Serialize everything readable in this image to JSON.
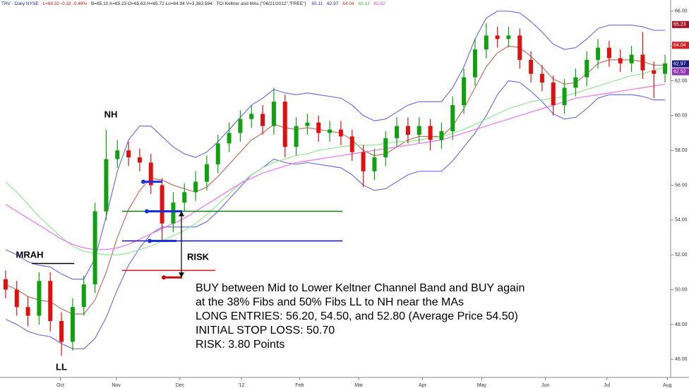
{
  "chart_data": {
    "type": "candlestick",
    "header": {
      "symbol": "TRV - Daily  NYSE",
      "last": "L=65.32 -0.32 -0.49%",
      "quote": "B=65.10  A=65.23  O=65.63  H=65.72  Lo=64.94  V=3,383,594",
      "study": "TCI Keltner and MAs (\"06/21/2012\",\"FREE\")",
      "study_values": [
        {
          "text": "65.11",
          "color": "#3030ff"
        },
        {
          "text": "62.97",
          "color": "#1a1a80"
        },
        {
          "text": "64.04",
          "color": "#c02020"
        },
        {
          "text": "63.13",
          "color": "#40c040"
        },
        {
          "text": "62.52",
          "color": "#e040e0"
        }
      ]
    },
    "open": [
      50.6,
      50.0,
      49.0,
      48.5,
      50.5,
      48.2,
      47.0,
      49.0,
      50.3,
      54.5,
      57.5,
      58.0,
      57.6,
      57.3,
      56.0,
      53.8,
      55.0,
      55.6,
      56.2,
      57.2,
      58.4,
      59.0,
      59.8,
      60.1,
      59.4,
      60.8,
      58.2,
      59.4,
      59.6,
      59.0,
      59.2,
      58.8,
      57.9,
      56.8,
      57.6,
      58.7,
      59.4,
      58.9,
      59.4,
      58.6,
      59.1,
      60.6,
      62.2,
      63.8,
      64.6,
      64.4,
      64.6,
      63.2,
      62.4,
      61.9,
      60.6,
      61.6,
      62.2,
      63.2,
      63.9,
      63.3,
      63.0,
      63.5,
      62.6,
      62.4
    ],
    "high": [
      51.1,
      50.5,
      49.6,
      51.0,
      51.0,
      48.7,
      49.5,
      50.8,
      55.0,
      59.2,
      58.6,
      58.5,
      58.1,
      57.8,
      56.4,
      55.6,
      56.1,
      56.8,
      57.7,
      58.9,
      59.6,
      60.3,
      60.6,
      60.6,
      61.6,
      61.2,
      59.9,
      60.1,
      60.0,
      59.7,
      59.7,
      59.2,
      58.3,
      58.1,
      59.1,
      59.9,
      59.9,
      59.9,
      59.8,
      59.6,
      61.1,
      62.7,
      64.4,
      65.3,
      65.1,
      65.1,
      65.0,
      63.7,
      62.9,
      62.3,
      62.1,
      62.7,
      63.7,
      64.4,
      64.3,
      63.8,
      64.0,
      64.8,
      63.1,
      63.5
    ],
    "low": [
      49.5,
      48.5,
      47.9,
      48.0,
      47.6,
      46.2,
      46.5,
      48.5,
      49.8,
      54.0,
      57.0,
      57.1,
      56.8,
      55.5,
      52.8,
      53.3,
      54.5,
      55.1,
      55.7,
      56.7,
      57.9,
      58.5,
      59.3,
      58.9,
      58.9,
      57.6,
      57.7,
      58.9,
      58.5,
      58.5,
      58.3,
      57.4,
      55.9,
      56.3,
      57.1,
      58.2,
      58.4,
      58.4,
      58.0,
      58.1,
      58.6,
      60.1,
      61.7,
      63.3,
      63.9,
      63.9,
      62.7,
      61.9,
      61.4,
      60.0,
      60.1,
      61.1,
      61.7,
      62.7,
      62.8,
      62.5,
      62.5,
      62.1,
      61.0,
      61.9
    ],
    "close": [
      50.0,
      49.0,
      48.5,
      50.5,
      48.2,
      47.0,
      49.0,
      50.3,
      54.5,
      57.5,
      58.0,
      57.6,
      57.3,
      56.0,
      53.8,
      55.0,
      55.6,
      56.2,
      57.2,
      58.4,
      59.0,
      59.8,
      60.1,
      59.4,
      60.8,
      58.2,
      59.4,
      59.6,
      59.0,
      59.2,
      58.8,
      57.9,
      56.8,
      57.6,
      58.7,
      59.4,
      58.9,
      59.4,
      58.6,
      59.1,
      60.6,
      62.2,
      63.8,
      64.6,
      64.4,
      64.6,
      63.2,
      62.4,
      61.9,
      60.6,
      61.6,
      62.2,
      63.2,
      63.9,
      63.3,
      63.0,
      63.5,
      62.6,
      62.4,
      63.0
    ],
    "up_color": "#10a010",
    "down_color": "#e01010",
    "overlays": [
      {
        "color": "#7070e8",
        "values": [
          52.3,
          52.0,
          51.6,
          51.4,
          51.3,
          50.9,
          50.6,
          50.6,
          51.8,
          54.2,
          56.8,
          58.6,
          59.4,
          59.4,
          58.8,
          58.2,
          57.8,
          57.6,
          57.9,
          58.5,
          59.2,
          59.9,
          60.6,
          61.0,
          61.5,
          61.3,
          61.2,
          61.3,
          61.2,
          61.1,
          61.0,
          60.6,
          60.0,
          59.7,
          59.8,
          60.2,
          60.6,
          60.8,
          60.8,
          60.8,
          61.6,
          62.8,
          64.4,
          65.6,
          66.0,
          66.0,
          65.9,
          65.4,
          64.8,
          64.1,
          63.8,
          63.9,
          64.4,
          65.0,
          65.2,
          65.2,
          65.2,
          65.1,
          64.9,
          64.9
        ]
      },
      {
        "color": "#c07060",
        "values": [
          50.3,
          50.0,
          49.6,
          49.4,
          49.3,
          48.9,
          48.6,
          48.6,
          49.4,
          51.0,
          53.0,
          54.6,
          55.7,
          56.4,
          56.3,
          56.0,
          55.8,
          55.6,
          55.9,
          56.5,
          57.2,
          57.9,
          58.6,
          59.0,
          59.5,
          59.3,
          59.2,
          59.3,
          59.2,
          59.1,
          59.0,
          58.6,
          58.0,
          57.7,
          57.8,
          58.2,
          58.6,
          58.8,
          58.8,
          58.8,
          59.4,
          60.4,
          61.6,
          62.8,
          63.6,
          64.0,
          63.9,
          63.4,
          62.8,
          62.1,
          61.8,
          61.9,
          62.4,
          63.0,
          63.2,
          63.2,
          63.2,
          63.1,
          62.9,
          62.9
        ]
      },
      {
        "color": "#7070e8",
        "values": [
          48.3,
          48.0,
          47.6,
          47.4,
          47.3,
          46.9,
          46.6,
          46.6,
          47.2,
          48.4,
          50.0,
          51.4,
          52.4,
          53.2,
          53.6,
          53.6,
          53.6,
          53.6,
          53.9,
          54.5,
          55.2,
          55.9,
          56.6,
          57.0,
          57.5,
          57.3,
          57.2,
          57.3,
          57.2,
          57.1,
          57.0,
          56.6,
          56.0,
          55.7,
          55.8,
          56.2,
          56.6,
          56.8,
          56.8,
          56.8,
          57.4,
          58.2,
          59.0,
          60.0,
          61.2,
          62.0,
          61.9,
          61.4,
          60.8,
          60.1,
          59.8,
          59.9,
          60.4,
          61.0,
          61.2,
          61.2,
          61.2,
          61.1,
          60.9,
          60.9
        ]
      },
      {
        "color": "#90e890",
        "values": [
          56.2,
          55.6,
          54.9,
          54.2,
          53.6,
          53.0,
          52.5,
          52.2,
          52.1,
          52.0,
          52.0,
          52.1,
          52.3,
          52.5,
          52.8,
          53.1,
          53.4,
          53.8,
          54.3,
          54.9,
          55.5,
          56.1,
          56.6,
          57.0,
          57.3,
          57.5,
          57.7,
          57.8,
          58.0,
          58.1,
          58.2,
          58.3,
          58.3,
          58.3,
          58.4,
          58.5,
          58.5,
          58.6,
          58.7,
          58.8,
          59.0,
          59.2,
          59.5,
          59.8,
          60.1,
          60.4,
          60.6,
          60.8,
          60.9,
          61.0,
          61.1,
          61.3,
          61.5,
          61.7,
          61.9,
          62.1,
          62.3,
          62.4,
          62.6,
          62.8
        ]
      },
      {
        "color": "#f070f0",
        "values": [
          54.9,
          54.5,
          54.1,
          53.7,
          53.3,
          52.9,
          52.6,
          52.4,
          52.3,
          52.3,
          52.4,
          52.6,
          52.9,
          53.2,
          53.5,
          53.8,
          54.1,
          54.5,
          54.9,
          55.3,
          55.7,
          56.1,
          56.4,
          56.7,
          56.9,
          57.1,
          57.3,
          57.4,
          57.5,
          57.6,
          57.7,
          57.8,
          57.9,
          58.0,
          58.1,
          58.2,
          58.3,
          58.4,
          58.5,
          58.6,
          58.8,
          59.0,
          59.2,
          59.4,
          59.6,
          59.8,
          60.0,
          60.2,
          60.4,
          60.6,
          60.8,
          61.0,
          61.1,
          61.2,
          61.3,
          61.4,
          61.5,
          61.6,
          61.7,
          61.8
        ]
      }
    ],
    "xlim": [
      -0.5,
      59.5
    ],
    "xticks": [
      {
        "value": 4.9,
        "label": "Oct"
      },
      {
        "value": 9.9,
        "label": "Nov"
      },
      {
        "value": 15.6,
        "label": "Dec"
      },
      {
        "value": 21.1,
        "label": "'12"
      },
      {
        "value": 26.3,
        "label": "Feb"
      },
      {
        "value": 31.6,
        "label": "Mar"
      },
      {
        "value": 37.3,
        "label": "Apr"
      },
      {
        "value": 42.6,
        "label": "May"
      },
      {
        "value": 48.3,
        "label": "Jun"
      },
      {
        "value": 53.8,
        "label": "Jul"
      },
      {
        "value": 59.2,
        "label": "Aug"
      }
    ],
    "ylim": [
      45.2,
      66.6
    ],
    "yticks": [
      {
        "value": 46,
        "label": "46.00"
      },
      {
        "value": 48,
        "label": "48.00"
      },
      {
        "value": 50,
        "label": "50.00"
      },
      {
        "value": 52,
        "label": "52.00"
      },
      {
        "value": 54,
        "label": "54.00"
      },
      {
        "value": 56,
        "label": "56.00"
      },
      {
        "value": 58,
        "label": "58.00"
      },
      {
        "value": 60,
        "label": "60.00"
      },
      {
        "value": 62,
        "label": "62.00"
      },
      {
        "value": 64,
        "label": "64.00"
      },
      {
        "value": 66,
        "label": "66.00"
      }
    ],
    "price_tags": [
      {
        "value": 65.23,
        "color": "#a01828"
      },
      {
        "value": 64.04,
        "color": "#e02020"
      },
      {
        "value": 62.97,
        "color": "#1a1a80"
      },
      {
        "value": 62.52,
        "color": "#9030b0"
      }
    ],
    "entries": [
      56.2,
      54.5,
      52.8
    ],
    "stop": 50.7,
    "green_line": 54.5,
    "blue_line": 52.8,
    "red_line": 51.1,
    "mrah_line": 51.5,
    "annotations": {
      "nh": "NH",
      "mrah": "MRAH",
      "ll": "LL",
      "risk": "RISK"
    },
    "note_lines": [
      "BUY between Mid to Lower Keltner Channel Band and BUY again",
      "at the 38% Fibs and 50% Fibs LL to NH near the MAs",
      "LONG ENTRIES:  56.20, 54.50, and 52.80 (Average Price 54.50)",
      "INITIAL STOP LOSS:  50.70",
      "RISK:  3.80 Points"
    ]
  }
}
